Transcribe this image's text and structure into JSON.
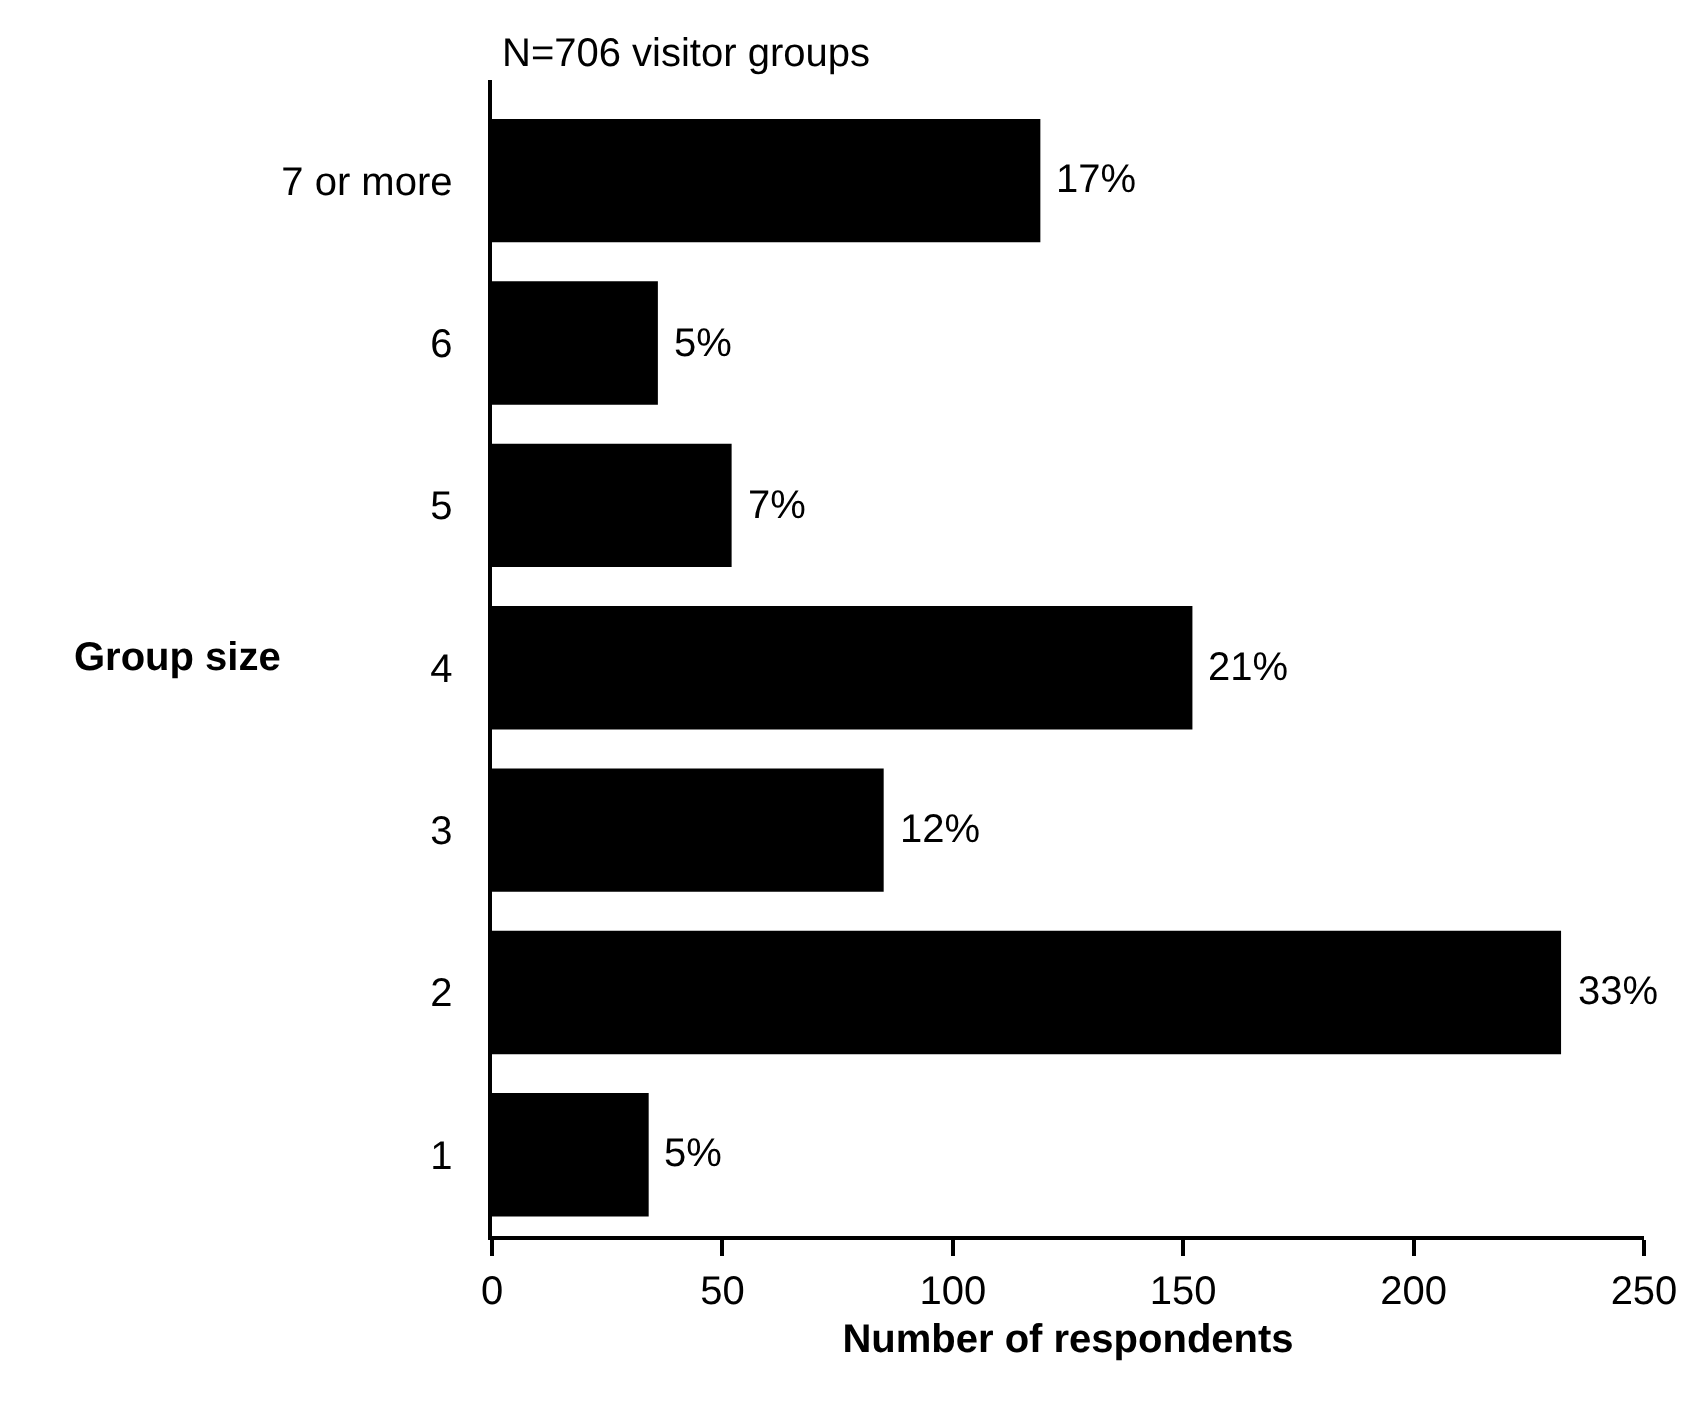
{
  "chart_data": {
    "type": "bar",
    "orientation": "horizontal",
    "title": "N=706 visitor groups",
    "xlabel": "Number of respondents",
    "ylabel": "Group size",
    "categories": [
      "7 or more",
      "6",
      "5",
      "4",
      "3",
      "2",
      "1"
    ],
    "values": [
      119,
      36,
      52,
      152,
      85,
      232,
      34
    ],
    "annotations": [
      {
        "text": "17%",
        "x": 119,
        "y": "7 or more"
      },
      {
        "text": "5%",
        "x": 36,
        "y": "6"
      },
      {
        "text": "7%",
        "x": 52,
        "y": "5"
      },
      {
        "text": "21%",
        "x": 152,
        "y": "4"
      },
      {
        "text": "12%",
        "x": 85,
        "y": "3"
      },
      {
        "text": "33%",
        "x": 232,
        "y": "2"
      },
      {
        "text": "5%",
        "x": 34,
        "y": "1"
      }
    ],
    "color": "#000000",
    "xlim": [
      0,
      250
    ],
    "xticks": [
      0,
      50,
      100,
      150,
      200,
      250
    ],
    "grid": false
  }
}
